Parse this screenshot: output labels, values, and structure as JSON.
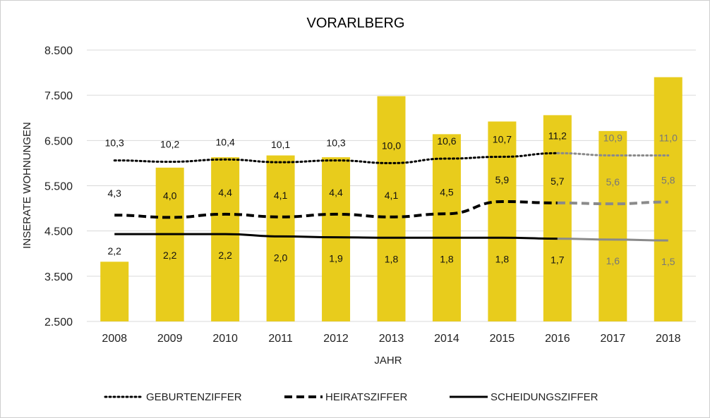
{
  "chart_data": {
    "type": "bar",
    "title": "VORARLBERG",
    "xlabel": "JAHR",
    "ylabel": "INSERATE WOHNUNGEN",
    "categories": [
      "2008",
      "2009",
      "2010",
      "2011",
      "2012",
      "2013",
      "2014",
      "2015",
      "2016",
      "2017",
      "2018"
    ],
    "ylim": [
      2500,
      8500
    ],
    "yticks": [
      2500,
      3500,
      4500,
      5500,
      6500,
      7500,
      8500
    ],
    "ytick_labels": [
      "2.500",
      "3.500",
      "4.500",
      "5.500",
      "6.500",
      "7.500",
      "8.500"
    ],
    "grid": true,
    "bar_color": "#e8cc1c",
    "values": [
      3820,
      5900,
      6130,
      6170,
      6130,
      7480,
      6640,
      6920,
      7060,
      6710,
      7900
    ],
    "series": [
      {
        "name": "GEBURTENZIFFER",
        "style": "dotted",
        "rate_labels": [
          "10,3",
          "10,2",
          "10,4",
          "10,1",
          "10,3",
          "10,0",
          "10,6",
          "10,7",
          "11,2",
          "10,9",
          "11,0"
        ],
        "line_y": [
          6060,
          6030,
          6080,
          6020,
          6060,
          6000,
          6100,
          6140,
          6220,
          6170,
          6170
        ]
      },
      {
        "name": "HEIRATSZIFFER",
        "style": "dashed",
        "rate_labels": [
          "4,3",
          "4,0",
          "4,4",
          "4,1",
          "4,4",
          "4,1",
          "4,5",
          "5,9",
          "5,7",
          "5,6",
          "5,8"
        ],
        "line_y": [
          4850,
          4800,
          4870,
          4810,
          4870,
          4810,
          4880,
          5150,
          5120,
          5100,
          5140
        ]
      },
      {
        "name": "SCHEIDUNGSZIFFER",
        "style": "solid",
        "rate_labels": [
          "2,2",
          "2,2",
          "2,2",
          "2,0",
          "1,9",
          "1,8",
          "1,8",
          "1,8",
          "1,7",
          "1,6",
          "1,5"
        ],
        "line_y": [
          4430,
          4430,
          4430,
          4380,
          4360,
          4350,
          4350,
          4350,
          4330,
          4310,
          4290
        ]
      }
    ],
    "projection_from_index": 8,
    "projected_label_from_index": 9,
    "legend_position": "bottom"
  }
}
